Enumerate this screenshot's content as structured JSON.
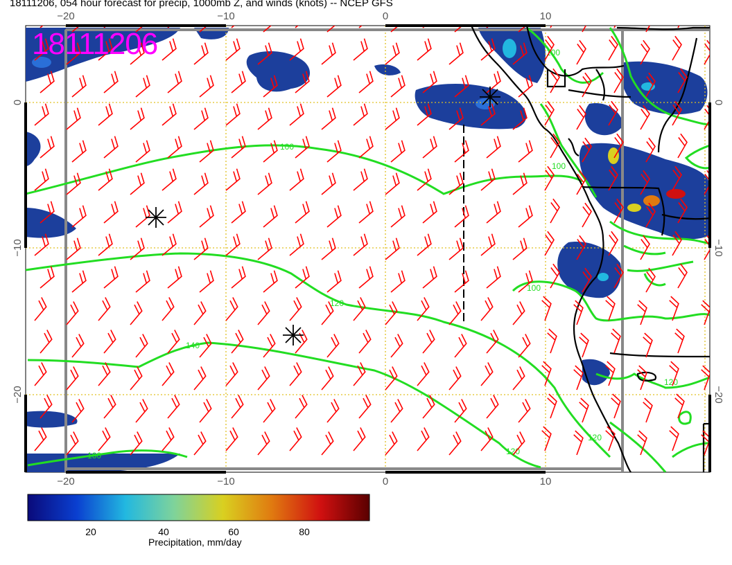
{
  "title": "18111206, 054 hour forecast for precip, 1000mb Z, and winds (knots) -- NCEP GFS",
  "stamp": "18111206",
  "axes": {
    "lon_ticks": [
      "−20",
      "−10",
      "0",
      "10"
    ],
    "lat_ticks": [
      "0",
      "−10",
      "−20"
    ]
  },
  "contours": {
    "labels": [
      "100",
      "120",
      "140",
      "160",
      "100",
      "100",
      "120",
      "120",
      "120",
      "100"
    ],
    "color": "#22dd22"
  },
  "colorbar": {
    "label": "Precipitation, mm/day",
    "ticks": [
      "20",
      "40",
      "60",
      "80"
    ],
    "stops": [
      "#0a0a7a",
      "#0a3fd0",
      "#22b8e0",
      "#7fd39a",
      "#d9d020",
      "#e07a10",
      "#d01010",
      "#5a0000"
    ]
  },
  "colors": {
    "wind_barbs": "#ff0000",
    "grid": "#e0c020",
    "coast": "#000000",
    "precip": "#1c3f9c"
  }
}
